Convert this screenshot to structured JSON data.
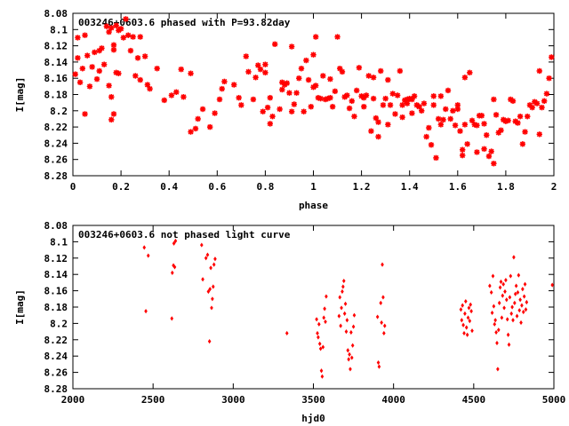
{
  "chart_data": [
    {
      "type": "scatter",
      "title": "003246+0603.6 phased with P=93.82day",
      "xlabel": "phase",
      "ylabel": "I[mag]",
      "xlim": [
        0,
        2
      ],
      "ylim": [
        8.08,
        8.28
      ],
      "y_inverted": true,
      "grid": false,
      "marker": "asterisk",
      "color": "#ff0000",
      "x_ticks": [
        "0",
        "0.2",
        "0.4",
        "0.6",
        "0.8",
        "1",
        "1.2",
        "1.4",
        "1.6",
        "1.8",
        "2"
      ],
      "y_ticks": [
        "8.08",
        "8.1",
        "8.12",
        "8.14",
        "8.16",
        "8.18",
        "8.2",
        "8.22",
        "8.24",
        "8.26",
        "8.28"
      ],
      "points": [
        [
          0.01,
          8.155
        ],
        [
          0.02,
          8.11
        ],
        [
          0.02,
          8.135
        ],
        [
          0.03,
          8.165
        ],
        [
          0.04,
          8.148
        ],
        [
          0.05,
          8.107
        ],
        [
          0.05,
          8.204
        ],
        [
          0.06,
          8.132
        ],
        [
          0.07,
          8.17
        ],
        [
          0.08,
          8.146
        ],
        [
          0.09,
          8.128
        ],
        [
          0.1,
          8.161
        ],
        [
          0.11,
          8.126
        ],
        [
          0.11,
          8.151
        ],
        [
          0.12,
          8.123
        ],
        [
          0.13,
          8.143
        ],
        [
          0.14,
          8.096
        ],
        [
          0.15,
          8.103
        ],
        [
          0.15,
          8.169
        ],
        [
          0.16,
          8.183
        ],
        [
          0.16,
          8.098
        ],
        [
          0.16,
          8.211
        ],
        [
          0.17,
          8.119
        ],
        [
          0.17,
          8.125
        ],
        [
          0.17,
          8.204
        ],
        [
          0.18,
          8.153
        ],
        [
          0.18,
          8.095
        ],
        [
          0.19,
          8.154
        ],
        [
          0.19,
          8.101
        ],
        [
          0.2,
          8.099
        ],
        [
          0.21,
          8.11
        ],
        [
          0.22,
          8.087
        ],
        [
          0.23,
          8.107
        ],
        [
          0.24,
          8.126
        ],
        [
          0.25,
          8.109
        ],
        [
          0.26,
          8.157
        ],
        [
          0.27,
          8.135
        ],
        [
          0.28,
          8.109
        ],
        [
          0.28,
          8.162
        ],
        [
          0.3,
          8.133
        ],
        [
          0.31,
          8.168
        ],
        [
          0.32,
          8.173
        ],
        [
          0.35,
          8.148
        ],
        [
          0.38,
          8.187
        ],
        [
          0.41,
          8.181
        ],
        [
          0.43,
          8.177
        ],
        [
          0.45,
          8.149
        ],
        [
          0.46,
          8.183
        ],
        [
          0.49,
          8.154
        ],
        [
          0.49,
          8.226
        ],
        [
          0.51,
          8.222
        ],
        [
          0.52,
          8.21
        ],
        [
          0.54,
          8.198
        ],
        [
          0.57,
          8.22
        ],
        [
          0.59,
          8.203
        ],
        [
          0.61,
          8.186
        ],
        [
          0.62,
          8.173
        ],
        [
          0.63,
          8.164
        ],
        [
          0.67,
          8.168
        ],
        [
          0.69,
          8.184
        ],
        [
          0.7,
          8.193
        ],
        [
          0.72,
          8.133
        ],
        [
          0.73,
          8.152
        ],
        [
          0.75,
          8.186
        ],
        [
          0.76,
          8.159
        ],
        [
          0.77,
          8.144
        ],
        [
          0.78,
          8.149
        ],
        [
          0.79,
          8.201
        ],
        [
          0.8,
          8.153
        ],
        [
          0.8,
          8.143
        ],
        [
          0.81,
          8.196
        ],
        [
          0.82,
          8.216
        ],
        [
          0.82,
          8.184
        ],
        [
          0.83,
          8.207
        ],
        [
          0.84,
          8.118
        ],
        [
          0.86,
          8.198
        ],
        [
          0.87,
          8.174
        ],
        [
          0.87,
          8.165
        ],
        [
          0.88,
          8.168
        ],
        [
          0.89,
          8.166
        ],
        [
          0.9,
          8.178
        ],
        [
          0.91,
          8.201
        ],
        [
          0.91,
          8.121
        ],
        [
          0.92,
          8.192
        ],
        [
          0.93,
          8.178
        ],
        [
          0.94,
          8.16
        ],
        [
          0.95,
          8.148
        ],
        [
          0.96,
          8.201
        ],
        [
          0.97,
          8.138
        ],
        [
          0.98,
          8.162
        ],
        [
          0.99,
          8.195
        ],
        [
          1.0,
          8.171
        ],
        [
          1.0,
          8.131
        ],
        [
          1.01,
          8.169
        ],
        [
          1.01,
          8.109
        ],
        [
          1.02,
          8.184
        ],
        [
          1.03,
          8.185
        ],
        [
          1.04,
          8.157
        ],
        [
          1.05,
          8.186
        ],
        [
          1.06,
          8.185
        ],
        [
          1.07,
          8.184
        ],
        [
          1.07,
          8.161
        ],
        [
          1.08,
          8.195
        ],
        [
          1.09,
          8.176
        ],
        [
          1.1,
          8.109
        ],
        [
          1.11,
          8.148
        ],
        [
          1.12,
          8.152
        ],
        [
          1.13,
          8.183
        ],
        [
          1.14,
          8.181
        ],
        [
          1.15,
          8.197
        ],
        [
          1.16,
          8.188
        ],
        [
          1.17,
          8.207
        ],
        [
          1.18,
          8.175
        ],
        [
          1.19,
          8.147
        ],
        [
          1.2,
          8.182
        ],
        [
          1.21,
          8.184
        ],
        [
          1.21,
          8.195
        ],
        [
          1.22,
          8.181
        ],
        [
          1.23,
          8.157
        ],
        [
          1.24,
          8.225
        ],
        [
          1.25,
          8.185
        ],
        [
          1.25,
          8.159
        ],
        [
          1.26,
          8.209
        ],
        [
          1.27,
          8.214
        ],
        [
          1.27,
          8.232
        ],
        [
          1.28,
          8.151
        ],
        [
          1.29,
          8.193
        ],
        [
          1.3,
          8.185
        ],
        [
          1.31,
          8.162
        ],
        [
          1.31,
          8.217
        ],
        [
          1.32,
          8.193
        ],
        [
          1.33,
          8.179
        ],
        [
          1.34,
          8.204
        ],
        [
          1.35,
          8.181
        ],
        [
          1.36,
          8.151
        ],
        [
          1.37,
          8.193
        ],
        [
          1.37,
          8.208
        ],
        [
          1.38,
          8.187
        ],
        [
          1.39,
          8.191
        ],
        [
          1.39,
          8.186
        ],
        [
          1.4,
          8.185
        ],
        [
          1.41,
          8.186
        ],
        [
          1.41,
          8.203
        ],
        [
          1.42,
          8.182
        ],
        [
          1.43,
          8.193
        ],
        [
          1.44,
          8.195
        ],
        [
          1.45,
          8.2
        ],
        [
          1.46,
          8.191
        ],
        [
          1.47,
          8.232
        ],
        [
          1.48,
          8.221
        ],
        [
          1.49,
          8.242
        ],
        [
          1.5,
          8.182
        ],
        [
          1.5,
          8.193
        ],
        [
          1.51,
          8.258
        ],
        [
          1.52,
          8.21
        ],
        [
          1.53,
          8.217
        ],
        [
          1.53,
          8.182
        ],
        [
          1.54,
          8.211
        ],
        [
          1.55,
          8.198
        ],
        [
          1.56,
          8.175
        ],
        [
          1.57,
          8.21
        ],
        [
          1.58,
          8.2
        ],
        [
          1.59,
          8.218
        ],
        [
          1.6,
          8.198
        ],
        [
          1.6,
          8.193
        ],
        [
          1.61,
          8.225
        ],
        [
          1.62,
          8.248
        ],
        [
          1.62,
          8.255
        ],
        [
          1.63,
          8.217
        ],
        [
          1.63,
          8.159
        ],
        [
          1.64,
          8.241
        ],
        [
          1.65,
          8.153
        ],
        [
          1.66,
          8.212
        ],
        [
          1.67,
          8.217
        ],
        [
          1.68,
          8.251
        ],
        [
          1.68,
          8.218
        ],
        [
          1.69,
          8.206
        ],
        [
          1.7,
          8.206
        ],
        [
          1.71,
          8.216
        ],
        [
          1.71,
          8.247
        ],
        [
          1.72,
          8.23
        ],
        [
          1.73,
          8.256
        ],
        [
          1.74,
          8.25
        ],
        [
          1.75,
          8.265
        ],
        [
          1.75,
          8.186
        ],
        [
          1.76,
          8.205
        ],
        [
          1.77,
          8.227
        ],
        [
          1.78,
          8.224
        ],
        [
          1.79,
          8.211
        ],
        [
          1.8,
          8.213
        ],
        [
          1.81,
          8.212
        ],
        [
          1.82,
          8.186
        ],
        [
          1.83,
          8.188
        ],
        [
          1.84,
          8.213
        ],
        [
          1.85,
          8.215
        ],
        [
          1.86,
          8.207
        ],
        [
          1.87,
          8.241
        ],
        [
          1.88,
          8.226
        ],
        [
          1.89,
          8.207
        ],
        [
          1.9,
          8.193
        ],
        [
          1.91,
          8.196
        ],
        [
          1.92,
          8.189
        ],
        [
          1.93,
          8.191
        ],
        [
          1.94,
          8.151
        ],
        [
          1.94,
          8.229
        ],
        [
          1.95,
          8.196
        ],
        [
          1.96,
          8.188
        ],
        [
          1.97,
          8.179
        ],
        [
          1.98,
          8.16
        ],
        [
          1.99,
          8.134
        ]
      ]
    },
    {
      "type": "scatter",
      "title": "003246+0603.6 not phased light curve",
      "xlabel": "hjd0",
      "ylabel": "I[mag]",
      "xlim": [
        2000,
        5000
      ],
      "ylim": [
        8.08,
        8.28
      ],
      "y_inverted": true,
      "grid": false,
      "marker": "diamond",
      "color": "#ff0000",
      "x_ticks": [
        "2000",
        "2500",
        "3000",
        "3500",
        "4000",
        "4500",
        "5000"
      ],
      "y_ticks": [
        "8.08",
        "8.1",
        "8.12",
        "8.14",
        "8.16",
        "8.18",
        "8.2",
        "8.22",
        "8.24",
        "8.26",
        "8.28"
      ],
      "points": [
        [
          2445,
          8.107
        ],
        [
          2455,
          8.185
        ],
        [
          2470,
          8.117
        ],
        [
          2617,
          8.194
        ],
        [
          2620,
          8.138
        ],
        [
          2627,
          8.129
        ],
        [
          2630,
          8.102
        ],
        [
          2635,
          8.131
        ],
        [
          2640,
          8.099
        ],
        [
          2803,
          8.104
        ],
        [
          2810,
          8.146
        ],
        [
          2830,
          8.12
        ],
        [
          2840,
          8.116
        ],
        [
          2845,
          8.161
        ],
        [
          2852,
          8.222
        ],
        [
          2855,
          8.158
        ],
        [
          2860,
          8.132
        ],
        [
          2865,
          8.181
        ],
        [
          2870,
          8.17
        ],
        [
          2875,
          8.155
        ],
        [
          2880,
          8.128
        ],
        [
          2887,
          8.121
        ],
        [
          3335,
          8.212
        ],
        [
          3520,
          8.195
        ],
        [
          3525,
          8.212
        ],
        [
          3530,
          8.217
        ],
        [
          3535,
          8.201
        ],
        [
          3540,
          8.225
        ],
        [
          3545,
          8.231
        ],
        [
          3550,
          8.258
        ],
        [
          3555,
          8.265
        ],
        [
          3560,
          8.229
        ],
        [
          3565,
          8.193
        ],
        [
          3570,
          8.182
        ],
        [
          3575,
          8.198
        ],
        [
          3580,
          8.167
        ],
        [
          3660,
          8.191
        ],
        [
          3665,
          8.168
        ],
        [
          3670,
          8.203
        ],
        [
          3675,
          8.181
        ],
        [
          3680,
          8.161
        ],
        [
          3685,
          8.155
        ],
        [
          3690,
          8.148
        ],
        [
          3695,
          8.188
        ],
        [
          3700,
          8.176
        ],
        [
          3705,
          8.21
        ],
        [
          3710,
          8.196
        ],
        [
          3715,
          8.233
        ],
        [
          3720,
          8.244
        ],
        [
          3725,
          8.238
        ],
        [
          3730,
          8.256
        ],
        [
          3735,
          8.211
        ],
        [
          3740,
          8.242
        ],
        [
          3745,
          8.227
        ],
        [
          3750,
          8.204
        ],
        [
          3755,
          8.19
        ],
        [
          3900,
          8.192
        ],
        [
          3905,
          8.248
        ],
        [
          3910,
          8.253
        ],
        [
          3920,
          8.175
        ],
        [
          3925,
          8.199
        ],
        [
          3930,
          8.128
        ],
        [
          3935,
          8.168
        ],
        [
          3940,
          8.212
        ],
        [
          3945,
          8.203
        ],
        [
          4420,
          8.183
        ],
        [
          4425,
          8.196
        ],
        [
          4430,
          8.178
        ],
        [
          4435,
          8.202
        ],
        [
          4440,
          8.212
        ],
        [
          4445,
          8.188
        ],
        [
          4450,
          8.173
        ],
        [
          4455,
          8.205
        ],
        [
          4460,
          8.214
        ],
        [
          4465,
          8.193
        ],
        [
          4470,
          8.181
        ],
        [
          4475,
          8.197
        ],
        [
          4480,
          8.177
        ],
        [
          4485,
          8.185
        ],
        [
          4490,
          8.209
        ],
        [
          4600,
          8.154
        ],
        [
          4610,
          8.162
        ],
        [
          4615,
          8.187
        ],
        [
          4620,
          8.142
        ],
        [
          4625,
          8.179
        ],
        [
          4630,
          8.201
        ],
        [
          4635,
          8.196
        ],
        [
          4640,
          8.211
        ],
        [
          4645,
          8.224
        ],
        [
          4650,
          8.256
        ],
        [
          4655,
          8.208
        ],
        [
          4660,
          8.175
        ],
        [
          4665,
          8.156
        ],
        [
          4670,
          8.149
        ],
        [
          4675,
          8.193
        ],
        [
          4680,
          8.166
        ],
        [
          4685,
          8.152
        ],
        [
          4690,
          8.181
        ],
        [
          4695,
          8.161
        ],
        [
          4700,
          8.147
        ],
        [
          4705,
          8.171
        ],
        [
          4710,
          8.195
        ],
        [
          4715,
          8.214
        ],
        [
          4720,
          8.226
        ],
        [
          4725,
          8.168
        ],
        [
          4730,
          8.142
        ],
        [
          4735,
          8.188
        ],
        [
          4740,
          8.18
        ],
        [
          4745,
          8.196
        ],
        [
          4750,
          8.119
        ],
        [
          4755,
          8.175
        ],
        [
          4760,
          8.164
        ],
        [
          4765,
          8.154
        ],
        [
          4770,
          8.191
        ],
        [
          4775,
          8.162
        ],
        [
          4780,
          8.141
        ],
        [
          4785,
          8.184
        ],
        [
          4790,
          8.171
        ],
        [
          4795,
          8.199
        ],
        [
          4800,
          8.178
        ],
        [
          4805,
          8.158
        ],
        [
          4810,
          8.186
        ],
        [
          4815,
          8.167
        ],
        [
          4820,
          8.152
        ],
        [
          4825,
          8.183
        ],
        [
          4830,
          8.174
        ],
        [
          4990,
          8.153
        ]
      ]
    }
  ]
}
